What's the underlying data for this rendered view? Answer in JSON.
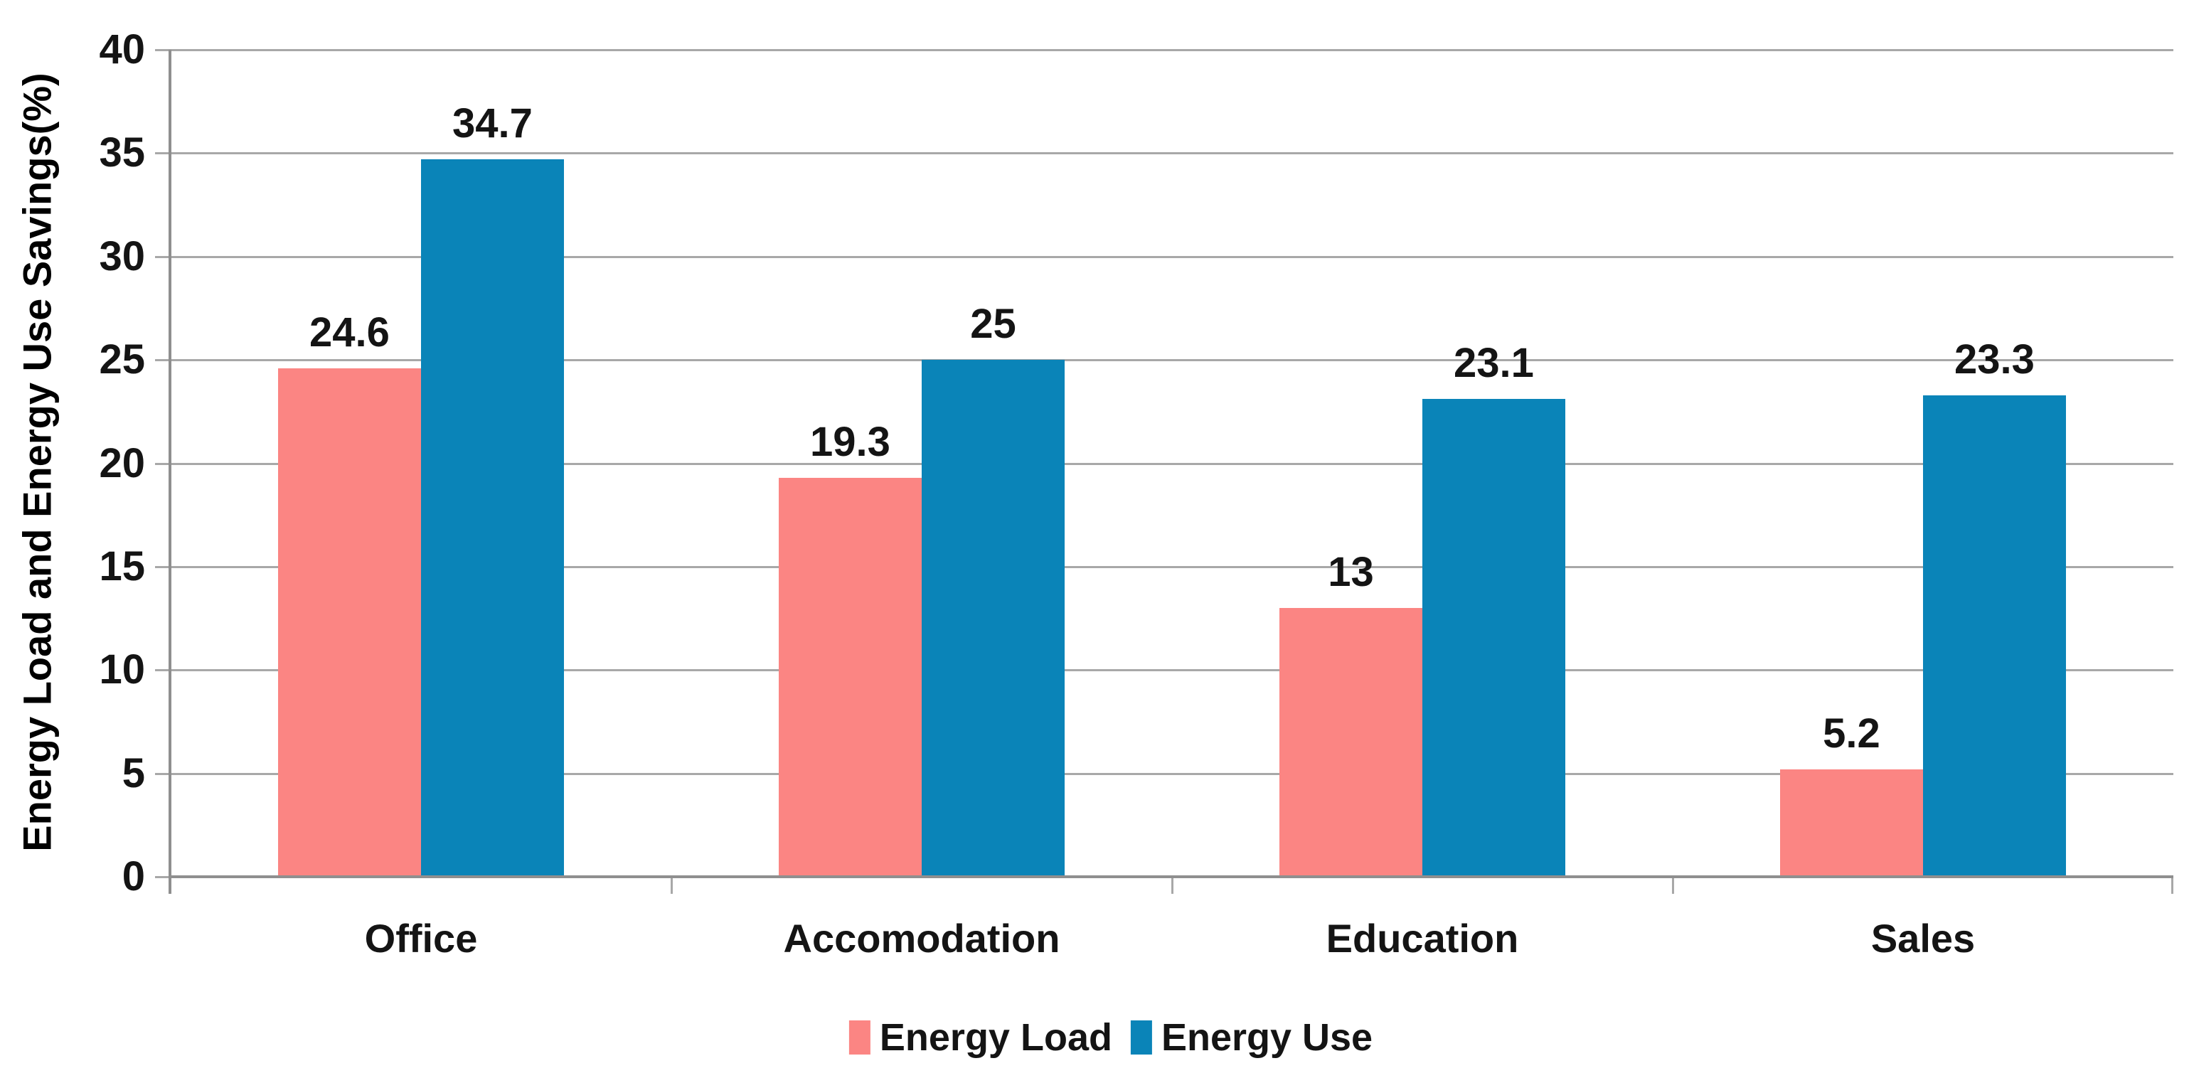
{
  "figure": {
    "background": "#FFFFFF"
  },
  "chart_data": {
    "type": "bar",
    "title": "",
    "xlabel": "",
    "ylabel": "Energy Load and Energy Use Savings(%)",
    "categories": [
      "Office",
      "Accomodation",
      "Education",
      "Sales"
    ],
    "series": [
      {
        "name": "Energy Load",
        "color": "#FB8583",
        "values": [
          24.6,
          19.3,
          13,
          5.2
        ]
      },
      {
        "name": "Energy Use",
        "color": "#0A84B8",
        "values": [
          34.7,
          25,
          23.1,
          23.3
        ]
      }
    ],
    "data_labels": {
      "Energy Load": [
        "24.6",
        "19.3",
        "13",
        "5.2"
      ],
      "Energy Use": [
        "34.7",
        "25",
        "23.1",
        "23.3"
      ]
    },
    "ylim": [
      0,
      40
    ],
    "ytick_step": 5,
    "ytick_labels": [
      "0",
      "5",
      "10",
      "15",
      "20",
      "25",
      "30",
      "35",
      "40"
    ],
    "grid": true,
    "legend_position": "bottom",
    "colors": {
      "grid": "#A8A8A8",
      "axis": "#8F8F8F",
      "text": "#141414"
    }
  }
}
